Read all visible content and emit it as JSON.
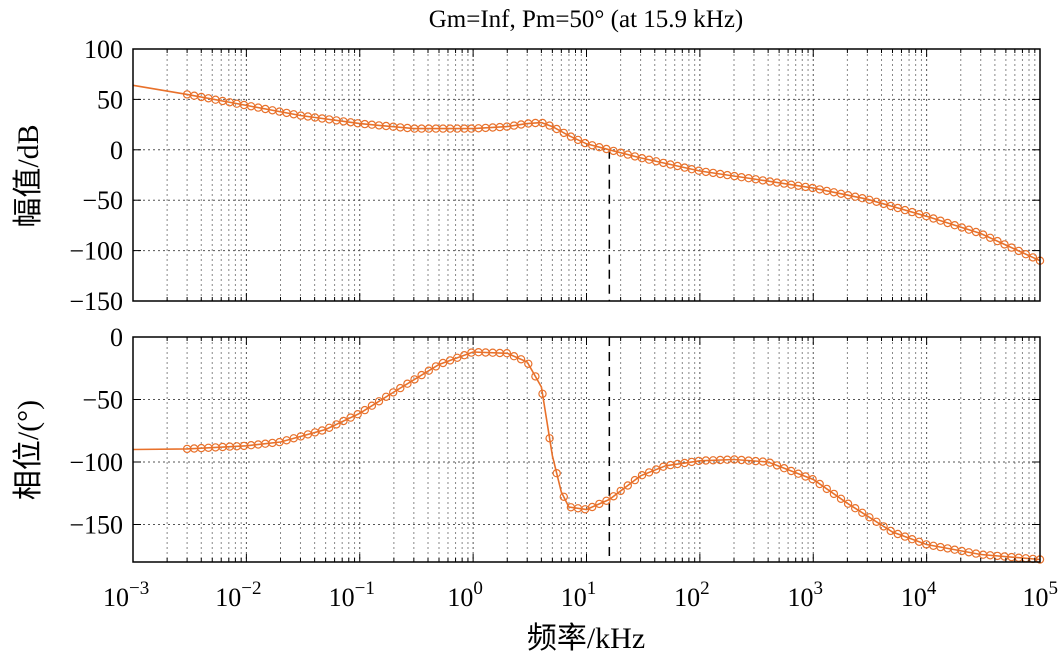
{
  "chart_data": [
    {
      "type": "line",
      "panel": "magnitude",
      "title": "Gm=Inf, Pm=50°  (at 15.9 kHz)",
      "ylabel": "幅值/dB",
      "xlabel": "",
      "xscale": "log",
      "xlim": [
        0.001,
        100000
      ],
      "ylim": [
        -150,
        100
      ],
      "yticks": [
        100,
        50,
        0,
        -50,
        -100,
        -150
      ],
      "ytick_labels": [
        "100",
        "50",
        "0",
        "−50",
        "−100",
        "−150"
      ],
      "marker_line_color": "#E8712B",
      "crossover_frequency_khz": 15.9,
      "series": [
        {
          "name": "magnitude",
          "x": [
            0.001,
            0.003,
            0.01,
            0.03,
            0.1,
            0.3,
            1,
            2,
            3,
            4,
            5,
            7,
            10,
            15.9,
            30,
            100,
            300,
            1000,
            3000,
            10000,
            30000,
            100000
          ],
          "values": [
            64,
            55,
            44,
            34,
            26,
            21,
            21,
            23,
            26,
            27,
            23,
            14,
            6,
            0,
            -8,
            -21,
            -29,
            -38,
            -49,
            -66,
            -83,
            -110
          ]
        }
      ]
    },
    {
      "type": "line",
      "panel": "phase",
      "title": "",
      "ylabel": "相位/(°)",
      "xlabel": "频率/kHz",
      "xscale": "log",
      "xlim": [
        0.001,
        100000
      ],
      "ylim": [
        -180,
        0
      ],
      "yticks": [
        0,
        -50,
        -100,
        -150
      ],
      "ytick_labels": [
        "0",
        "−50",
        "−100",
        "−150"
      ],
      "xtick_values": [
        0.001,
        0.01,
        0.1,
        1,
        10,
        100,
        1000,
        10000,
        100000
      ],
      "xtick_exponents": [
        "−3",
        "−2",
        "−1",
        "0",
        "1",
        "2",
        "3",
        "4",
        "5"
      ],
      "xtick_base": "10",
      "marker_line_color": "#E8712B",
      "crossover_frequency_khz": 15.9,
      "series": [
        {
          "name": "phase",
          "x": [
            0.001,
            0.003,
            0.01,
            0.02,
            0.05,
            0.1,
            0.2,
            0.5,
            1,
            2,
            3,
            4,
            5,
            6,
            7,
            10,
            15.9,
            30,
            50,
            100,
            200,
            400,
            1000,
            2000,
            5000,
            10000,
            30000,
            100000
          ],
          "values": [
            -90,
            -89.5,
            -87,
            -84,
            -74,
            -61,
            -44,
            -22,
            -12,
            -13,
            -20,
            -40,
            -95,
            -124,
            -136,
            -138,
            -130,
            -111,
            -103,
            -99,
            -98,
            -100,
            -114,
            -133,
            -156,
            -166,
            -174,
            -178
          ]
        }
      ]
    }
  ]
}
